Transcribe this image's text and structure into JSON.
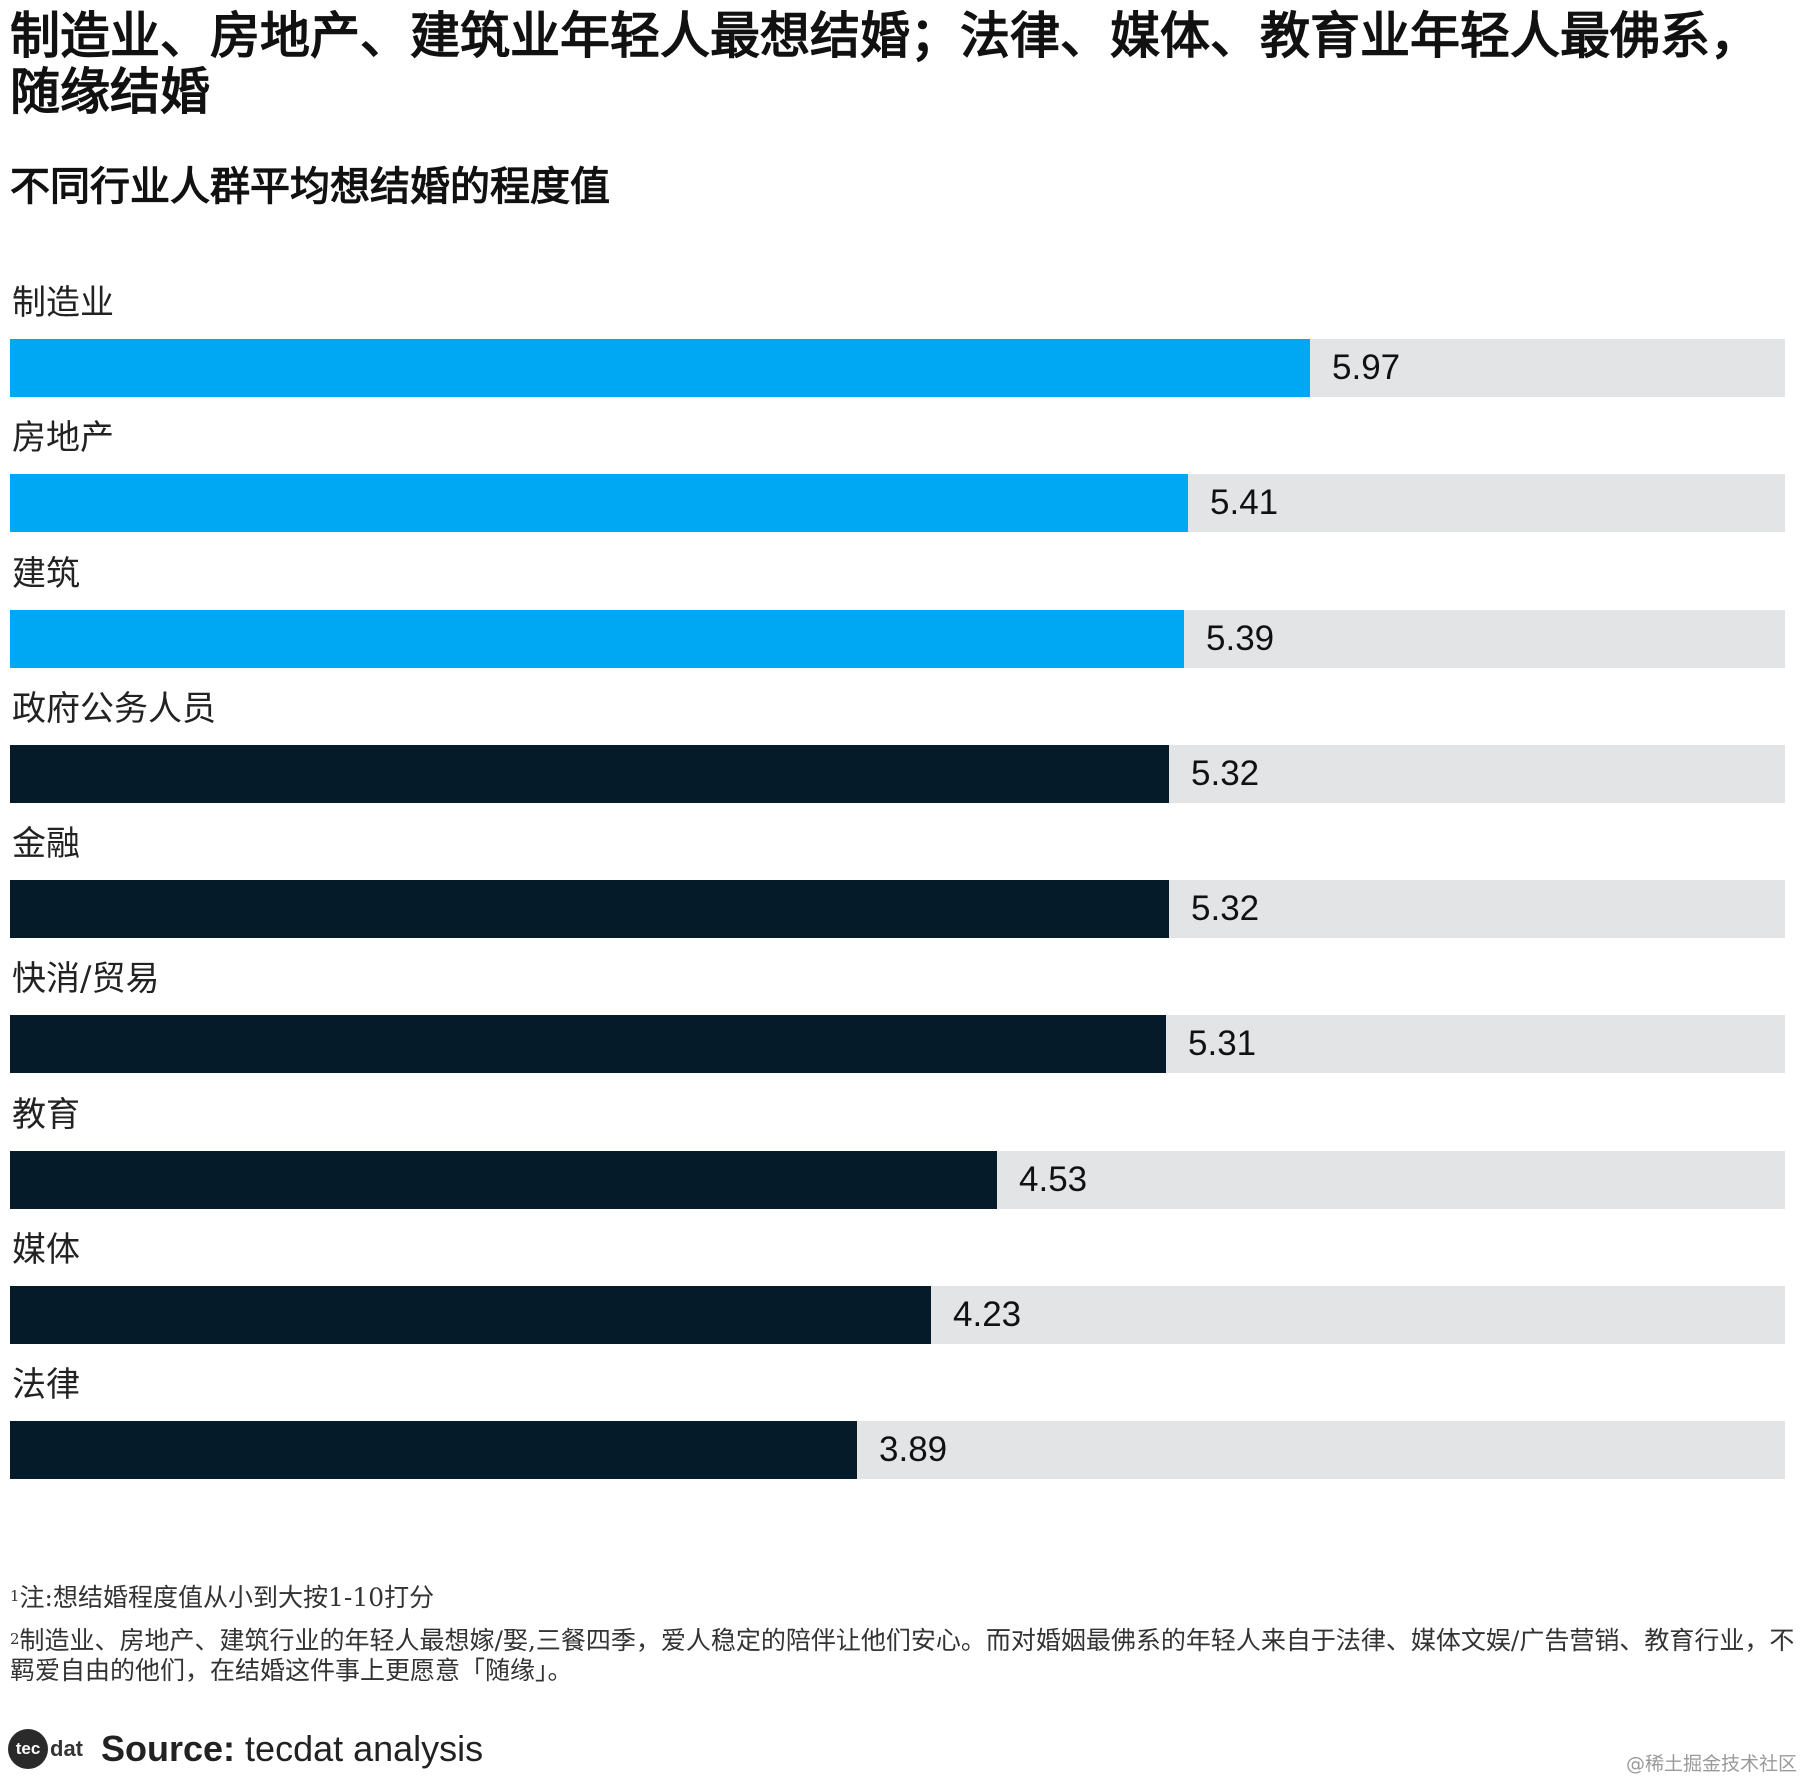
{
  "chart_data": {
    "type": "bar",
    "orientation": "horizontal",
    "title": "制造业、房地产、建筑业年轻人最想结婚；法律、媒体、教育业年轻人最佛系，随缘结婚",
    "subtitle": "不同行业人群平均想结婚的程度值",
    "categories": [
      "制造业",
      "房地产",
      "建筑",
      "政府公务人员",
      "金融",
      "快消/贸易",
      "教育",
      "媒体",
      "法律"
    ],
    "values": [
      5.97,
      5.41,
      5.39,
      5.32,
      5.32,
      5.31,
      4.53,
      4.23,
      3.89
    ],
    "value_labels": [
      "5.97",
      "5.41",
      "5.39",
      "5.32",
      "5.32",
      "5.31",
      "4.53",
      "4.23",
      "3.89"
    ],
    "highlight": [
      true,
      true,
      true,
      false,
      false,
      false,
      false,
      false,
      false
    ],
    "xlim": [
      0,
      8.15
    ],
    "xlabel": "",
    "ylabel": "",
    "grid": false,
    "legend": "none",
    "colors": {
      "highlight": "#00a7f2",
      "default": "#061b29",
      "track": "#e3e4e6"
    }
  },
  "notes": {
    "note1_sup": "1",
    "note1": "注:想结婚程度值从小到大按1-10打分",
    "note2_sup": "2",
    "note2": "制造业、房地产、建筑行业的年轻人最想嫁/娶,三餐四季，爱人稳定的陪伴让他们安心。而对婚姻最佛系的年轻人来自于法律、媒体文娱/广告营销、教育行业，不羁爱自由的他们，在结婚这件事上更愿意「随缘」。"
  },
  "footer": {
    "logo_circle": "tec",
    "logo_text": "dat",
    "source_label": "Source:",
    "source_text": "tecdat analysis"
  },
  "watermark": "@稀土掘金技术社区"
}
